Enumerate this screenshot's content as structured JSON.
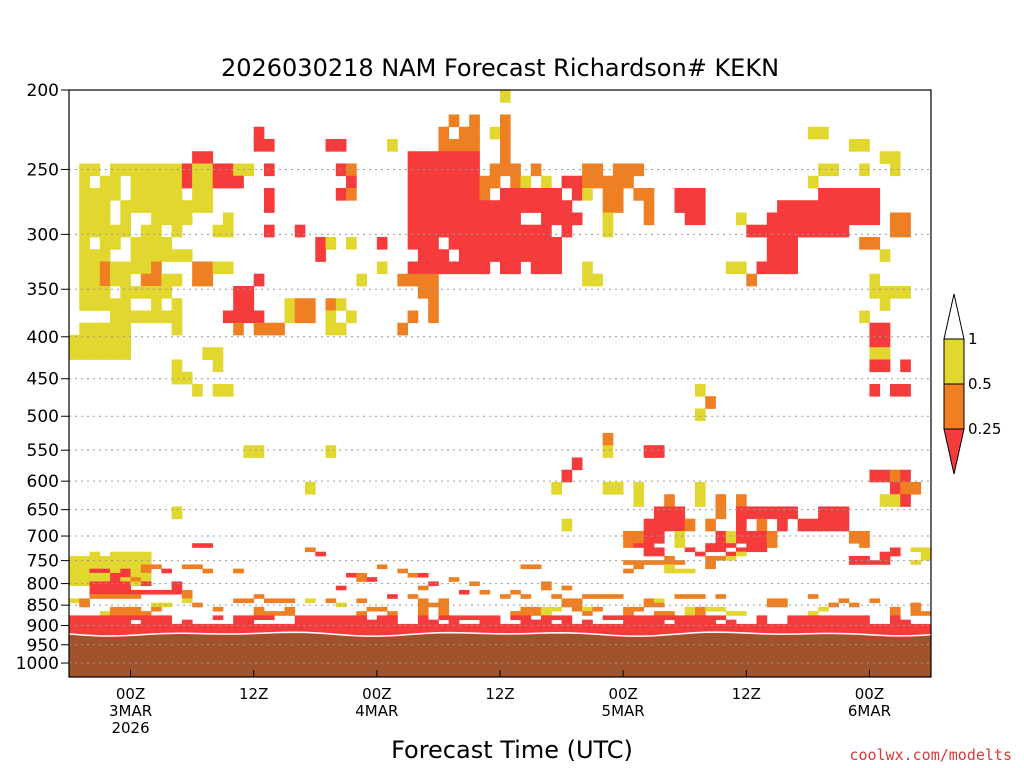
{
  "chart_data": {
    "type": "heatmap",
    "title": "2026030218 NAM Forecast Richardson# KEKN",
    "xlabel": "Forecast Time (UTC)",
    "credit": "coolwx.com/modelts",
    "y_axis": {
      "scale": "pressure",
      "ylim": [
        1040,
        200
      ],
      "ticks": [
        200,
        250,
        300,
        350,
        400,
        450,
        500,
        550,
        600,
        650,
        700,
        750,
        800,
        850,
        900,
        950,
        1000
      ],
      "gridlines": true
    },
    "x_axis": {
      "xlim": [
        -6,
        78
      ],
      "ticks": [
        {
          "hour": 0,
          "lines": [
            "00Z",
            "3MAR",
            "2026"
          ]
        },
        {
          "hour": 12,
          "lines": [
            "12Z"
          ]
        },
        {
          "hour": 24,
          "lines": [
            "00Z",
            "4MAR"
          ]
        },
        {
          "hour": 36,
          "lines": [
            "12Z"
          ]
        },
        {
          "hour": 48,
          "lines": [
            "00Z",
            "5MAR"
          ]
        },
        {
          "hour": 60,
          "lines": [
            "12Z"
          ]
        },
        {
          "hour": 72,
          "lines": [
            "00Z",
            "6MAR"
          ]
        }
      ]
    },
    "legend": {
      "placement": "right",
      "levels": [
        {
          "label": "1",
          "color": "#ffffff"
        },
        {
          "label": "0.5",
          "color": "#e2d72e"
        },
        {
          "label": "0.25",
          "color": "#ee7f22"
        },
        {
          "label": "",
          "color": "#f53b3b"
        }
      ]
    },
    "colors": {
      "low": "#f53b3b",
      "mid": "#ee7f22",
      "high": "#e2d72e",
      "ground": "#a0522d"
    },
    "surface_pressure_range": [
      918,
      930
    ],
    "regions": [
      {
        "class": "low",
        "t": [
          -6,
          78
        ],
        "p": [
          900,
          935
        ]
      },
      {
        "class": "low",
        "t": [
          -6,
          78
        ],
        "p": [
          870,
          900
        ],
        "density": 0.55
      },
      {
        "class": "mid",
        "t": [
          -6,
          78
        ],
        "p": [
          820,
          880
        ],
        "density": 0.35
      },
      {
        "class": "high",
        "t": [
          -6,
          78
        ],
        "p": [
          830,
          870
        ],
        "density": 0.2
      },
      {
        "class": "high",
        "t": [
          -6,
          2
        ],
        "p": [
          730,
          800
        ],
        "density": 0.8
      },
      {
        "class": "low",
        "t": [
          -4,
          5
        ],
        "p": [
          770,
          820
        ],
        "density": 0.45
      },
      {
        "class": "mid",
        "t": [
          -3,
          6
        ],
        "p": [
          760,
          820
        ],
        "density": 0.35
      },
      {
        "class": "high",
        "t": [
          -5,
          5
        ],
        "p": [
          250,
          390
        ],
        "density": 0.7
      },
      {
        "class": "mid",
        "t": [
          -3,
          3
        ],
        "p": [
          320,
          350
        ],
        "density": 0.45
      },
      {
        "class": "high",
        "t": [
          -6,
          0
        ],
        "p": [
          380,
          430
        ],
        "density": 0.7
      },
      {
        "class": "high",
        "t": [
          4,
          10
        ],
        "p": [
          380,
          480
        ],
        "density": 0.45
      },
      {
        "class": "high",
        "t": [
          5,
          12
        ],
        "p": [
          250,
          330
        ],
        "density": 0.4
      },
      {
        "class": "low",
        "t": [
          5,
          11
        ],
        "p": [
          240,
          260
        ],
        "density": 0.5
      },
      {
        "class": "mid",
        "t": [
          5,
          10
        ],
        "p": [
          320,
          350
        ],
        "density": 0.4
      },
      {
        "class": "low",
        "t": [
          9,
          13
        ],
        "p": [
          330,
          380
        ],
        "density": 0.5
      },
      {
        "class": "mid",
        "t": [
          10,
          15
        ],
        "p": [
          360,
          400
        ],
        "density": 0.45
      },
      {
        "class": "low",
        "t": [
          12,
          14
        ],
        "p": [
          225,
          240
        ],
        "density": 0.7
      },
      {
        "class": "low",
        "t": [
          13,
          17
        ],
        "p": [
          250,
          300
        ],
        "density": 0.4
      },
      {
        "class": "mid",
        "t": [
          14,
          20
        ],
        "p": [
          360,
          400
        ],
        "density": 0.4
      },
      {
        "class": "low",
        "t": [
          16,
          19
        ],
        "p": [
          290,
          320
        ],
        "density": 0.45
      },
      {
        "class": "low",
        "t": [
          19,
          22
        ],
        "p": [
          230,
          270
        ],
        "density": 0.45
      },
      {
        "class": "mid",
        "t": [
          18,
          22
        ],
        "p": [
          250,
          270
        ],
        "density": 0.35
      },
      {
        "class": "high",
        "t": [
          15,
          25
        ],
        "p": [
          300,
          400
        ],
        "density": 0.3
      },
      {
        "class": "low",
        "t": [
          24,
          26
        ],
        "p": [
          300,
          340
        ],
        "density": 0.55
      },
      {
        "class": "low",
        "t": [
          27,
          34
        ],
        "p": [
          240,
          330
        ],
        "density": 0.8
      },
      {
        "class": "mid",
        "t": [
          26,
          30
        ],
        "p": [
          330,
          400
        ],
        "density": 0.5
      },
      {
        "class": "mid",
        "t": [
          30,
          37
        ],
        "p": [
          215,
          250
        ],
        "density": 0.5
      },
      {
        "class": "high",
        "t": [
          25,
          37
        ],
        "p": [
          200,
          240
        ],
        "density": 0.2
      },
      {
        "class": "low",
        "t": [
          34,
          42
        ],
        "p": [
          260,
          340
        ],
        "density": 0.7
      },
      {
        "class": "mid",
        "t": [
          34,
          40
        ],
        "p": [
          250,
          280
        ],
        "density": 0.5
      },
      {
        "class": "low",
        "t": [
          40,
          44
        ],
        "p": [
          255,
          300
        ],
        "density": 0.6
      },
      {
        "class": "high",
        "t": [
          38,
          47
        ],
        "p": [
          250,
          300
        ],
        "density": 0.35
      },
      {
        "class": "mid",
        "t": [
          44,
          51
        ],
        "p": [
          250,
          290
        ],
        "density": 0.45
      },
      {
        "class": "high",
        "t": [
          44,
          50
        ],
        "p": [
          300,
          400
        ],
        "density": 0.2
      },
      {
        "class": "low",
        "t": [
          53,
          56
        ],
        "p": [
          260,
          290
        ],
        "density": 0.6
      },
      {
        "class": "high",
        "t": [
          55,
          61
        ],
        "p": [
          280,
          330
        ],
        "density": 0.35
      },
      {
        "class": "low",
        "t": [
          60,
          65
        ],
        "p": [
          290,
          340
        ],
        "density": 0.7
      },
      {
        "class": "mid",
        "t": [
          58,
          63
        ],
        "p": [
          330,
          380
        ],
        "density": 0.45
      },
      {
        "class": "low",
        "t": [
          62,
          70
        ],
        "p": [
          270,
          300
        ],
        "density": 0.7
      },
      {
        "class": "mid",
        "t": [
          65,
          71
        ],
        "p": [
          260,
          290
        ],
        "density": 0.45
      },
      {
        "class": "low",
        "t": [
          67,
          73
        ],
        "p": [
          260,
          290
        ],
        "density": 0.7
      },
      {
        "class": "high",
        "t": [
          66,
          75
        ],
        "p": [
          220,
          260
        ],
        "density": 0.35
      },
      {
        "class": "mid",
        "t": [
          71,
          76
        ],
        "p": [
          280,
          310
        ],
        "density": 0.5
      },
      {
        "class": "low",
        "t": [
          72,
          76
        ],
        "p": [
          390,
          470
        ],
        "density": 0.45
      },
      {
        "class": "high",
        "t": [
          71,
          77
        ],
        "p": [
          300,
          450
        ],
        "density": 0.2
      },
      {
        "class": "low",
        "t": [
          42,
          47
        ],
        "p": [
          560,
          600
        ],
        "density": 0.5
      },
      {
        "class": "mid",
        "t": [
          44,
          47
        ],
        "p": [
          530,
          570
        ],
        "density": 0.4
      },
      {
        "class": "high",
        "t": [
          40,
          50
        ],
        "p": [
          520,
          620
        ],
        "density": 0.2
      },
      {
        "class": "low",
        "t": [
          50,
          52
        ],
        "p": [
          540,
          560
        ],
        "density": 0.55
      },
      {
        "class": "low",
        "t": [
          49,
          62
        ],
        "p": [
          650,
          740
        ],
        "density": 0.45
      },
      {
        "class": "mid",
        "t": [
          48,
          62
        ],
        "p": [
          620,
          780
        ],
        "density": 0.3
      },
      {
        "class": "high",
        "t": [
          47,
          60
        ],
        "p": [
          600,
          780
        ],
        "density": 0.2
      },
      {
        "class": "low",
        "t": [
          61,
          70
        ],
        "p": [
          650,
          700
        ],
        "density": 0.45
      },
      {
        "class": "mid",
        "t": [
          61,
          72
        ],
        "p": [
          680,
          720
        ],
        "density": 0.4
      },
      {
        "class": "low",
        "t": [
          70,
          75
        ],
        "p": [
          720,
          760
        ],
        "density": 0.5
      },
      {
        "class": "low",
        "t": [
          72,
          76
        ],
        "p": [
          580,
          640
        ],
        "density": 0.55
      },
      {
        "class": "mid",
        "t": [
          74,
          78
        ],
        "p": [
          590,
          630
        ],
        "density": 0.4
      },
      {
        "class": "high",
        "t": [
          73,
          78
        ],
        "p": [
          630,
          760
        ],
        "density": 0.3
      },
      {
        "class": "mid",
        "t": [
          56,
          62
        ],
        "p": [
          470,
          520
        ],
        "density": 0.35
      },
      {
        "class": "high",
        "t": [
          54,
          64
        ],
        "p": [
          420,
          520
        ],
        "density": 0.15
      },
      {
        "class": "low",
        "t": [
          5,
          20
        ],
        "p": [
          700,
          780
        ],
        "density": 0.12
      },
      {
        "class": "mid",
        "t": [
          5,
          20
        ],
        "p": [
          680,
          780
        ],
        "density": 0.12
      },
      {
        "class": "high",
        "t": [
          -6,
          30
        ],
        "p": [
          460,
          700
        ],
        "density": 0.07
      },
      {
        "class": "low",
        "t": [
          20,
          40
        ],
        "p": [
          780,
          830
        ],
        "density": 0.22
      },
      {
        "class": "mid",
        "t": [
          20,
          45
        ],
        "p": [
          760,
          830
        ],
        "density": 0.2
      },
      {
        "class": "high",
        "t": [
          20,
          45
        ],
        "p": [
          600,
          780
        ],
        "density": 0.08
      },
      {
        "class": "high",
        "t": [
          60,
          78
        ],
        "p": [
          380,
          470
        ],
        "density": 0.1
      }
    ]
  }
}
